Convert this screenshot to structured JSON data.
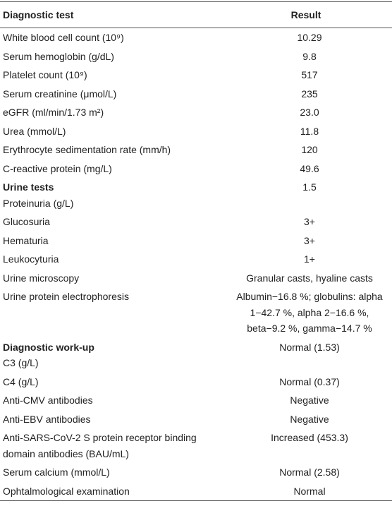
{
  "table": {
    "header": [
      "Diagnostic test",
      "Result"
    ],
    "rows": [
      {
        "test": "White blood cell count (10⁹)",
        "result": "10.29"
      },
      {
        "test": "Serum hemoglobin (g/dL)",
        "result": "9.8"
      },
      {
        "test": "Platelet count (10⁹)",
        "result": "517"
      },
      {
        "test": "Serum creatinine (μmol/L)",
        "result": "235"
      },
      {
        "test": "eGFR (ml/min/1.73 m²)",
        "result": "23.0"
      },
      {
        "test": "Urea (mmol/L)",
        "result": "11.8"
      },
      {
        "test": "Erythrocyte sedimentation rate (mm/h)",
        "result": "120"
      },
      {
        "test": "C-reactive protein (mg/L)",
        "result": "49.6"
      },
      {
        "heading": "Urine tests",
        "test": "Proteinuria (g/L)",
        "result": "1.5"
      },
      {
        "test": "Glucosuria",
        "result": "3+"
      },
      {
        "test": "Hematuria",
        "result": "3+"
      },
      {
        "test": "Leukocyturia",
        "result": "1+"
      },
      {
        "test": "Urine microscopy",
        "result": "Granular casts, hyaline casts"
      },
      {
        "test": "Urine protein electrophoresis",
        "result": "Albumin−16.8 %; globulins: alpha 1−42.7 %, alpha 2−16.6 %, beta−9.2 %, gamma−14.7 %"
      },
      {
        "heading": "Diagnostic work-up",
        "test": "C3 (g/L)",
        "result": "Normal (1.53)"
      },
      {
        "test": "C4 (g/L)",
        "result": "Normal (0.37)"
      },
      {
        "test": "Anti-CMV antibodies",
        "result": "Negative"
      },
      {
        "test": "Anti-EBV antibodies",
        "result": "Negative"
      },
      {
        "test": "Anti-SARS-CoV-2 S protein receptor binding domain antibodies (BAU/mL)",
        "result": "Increased (453.3)"
      },
      {
        "test": "Serum calcium (mmol/L)",
        "result": "Normal (2.58)"
      },
      {
        "test": "Ophtalmological examination",
        "result": "Normal"
      }
    ]
  }
}
